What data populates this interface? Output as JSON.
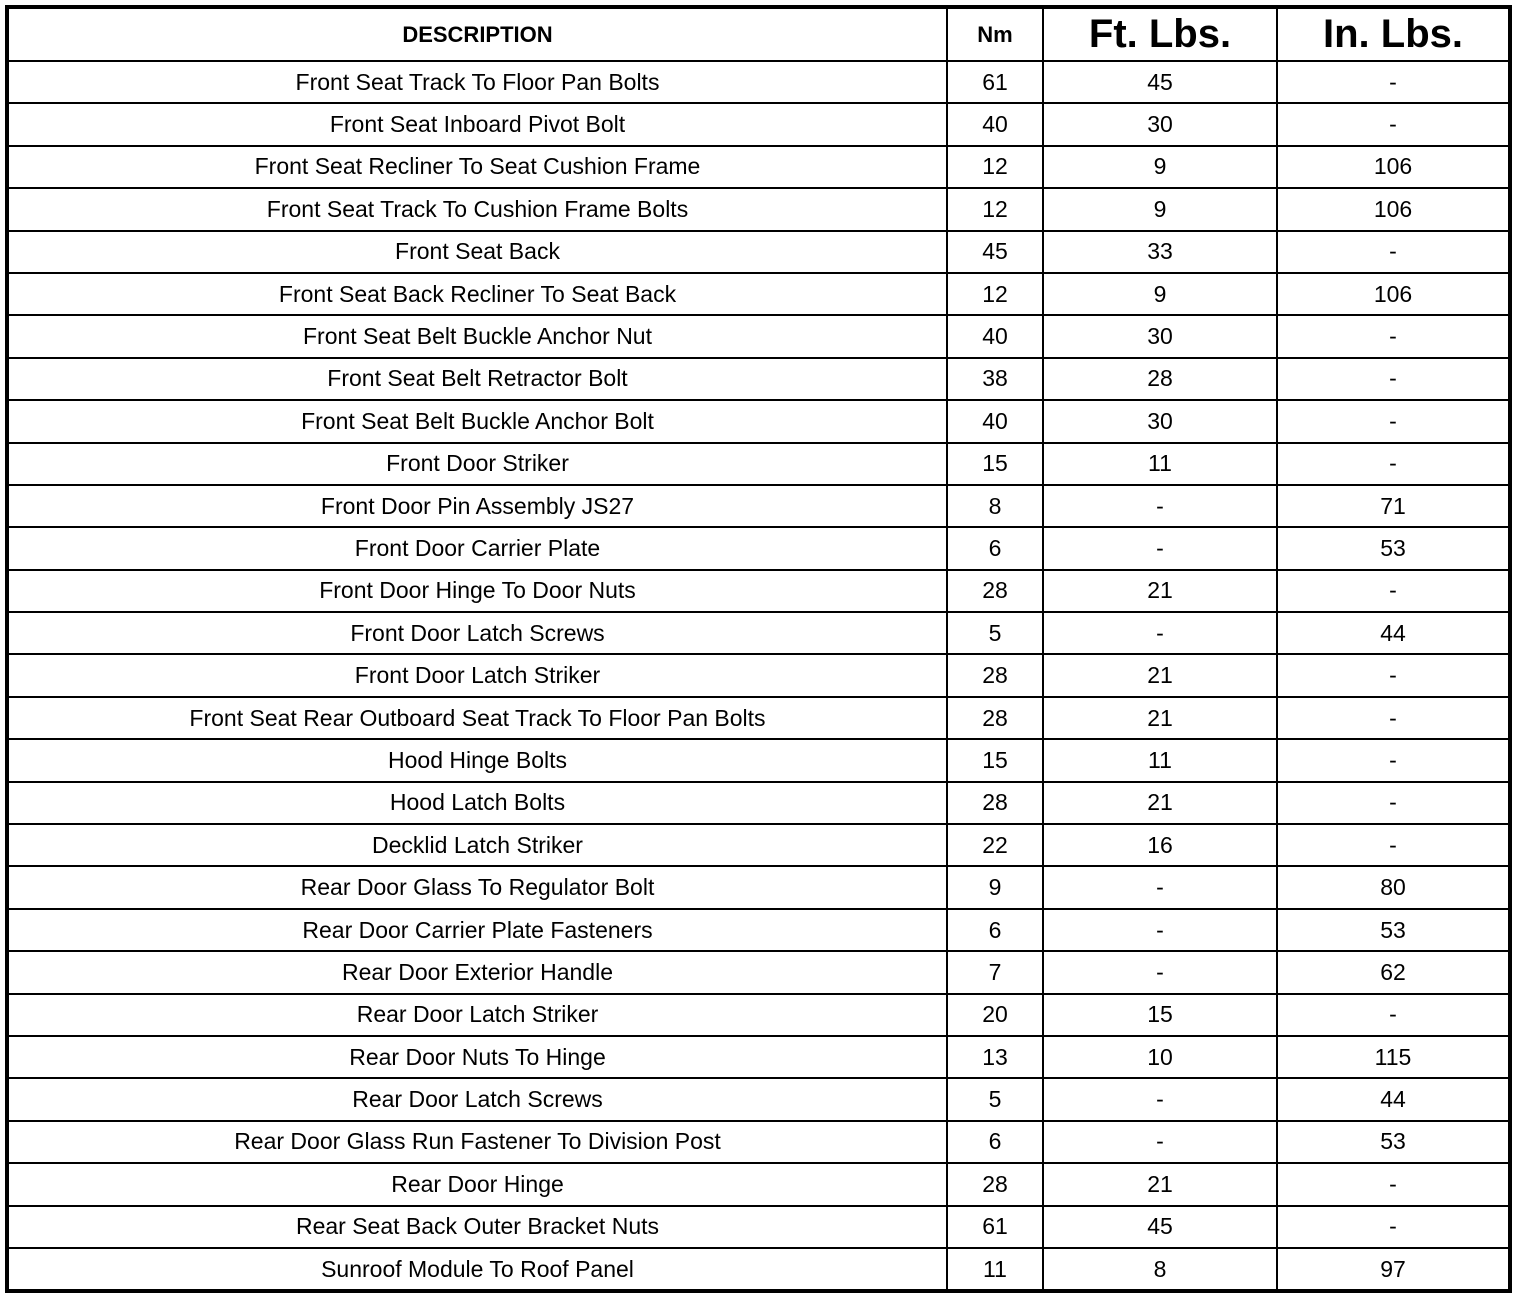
{
  "headers": {
    "description": "DESCRIPTION",
    "nm": "Nm",
    "ft": "Ft. Lbs.",
    "in": "In. Lbs."
  },
  "rows": [
    [
      "Front Seat Track To Floor Pan Bolts",
      "61",
      "45",
      "-"
    ],
    [
      "Front Seat Inboard Pivot Bolt",
      "40",
      "30",
      "-"
    ],
    [
      "Front Seat Recliner To Seat Cushion Frame",
      "12",
      "9",
      "106"
    ],
    [
      "Front Seat Track To Cushion Frame Bolts",
      "12",
      "9",
      "106"
    ],
    [
      "Front Seat Back",
      "45",
      "33",
      "-"
    ],
    [
      "Front Seat Back Recliner To Seat Back",
      "12",
      "9",
      "106"
    ],
    [
      "Front Seat Belt Buckle Anchor Nut",
      "40",
      "30",
      "-"
    ],
    [
      "Front Seat Belt Retractor Bolt",
      "38",
      "28",
      "-"
    ],
    [
      "Front Seat Belt Buckle Anchor Bolt",
      "40",
      "30",
      "-"
    ],
    [
      "Front Door Striker",
      "15",
      "11",
      "-"
    ],
    [
      "Front Door Pin Assembly JS27",
      "8",
      "-",
      "71"
    ],
    [
      "Front Door Carrier Plate",
      "6",
      "-",
      "53"
    ],
    [
      "Front Door Hinge To Door Nuts",
      "28",
      "21",
      "-"
    ],
    [
      "Front Door Latch Screws",
      "5",
      "-",
      "44"
    ],
    [
      "Front Door Latch Striker",
      "28",
      "21",
      "-"
    ],
    [
      "Front Seat Rear Outboard Seat Track To Floor Pan Bolts",
      "28",
      "21",
      "-"
    ],
    [
      "Hood Hinge Bolts",
      "15",
      "11",
      "-"
    ],
    [
      "Hood Latch Bolts",
      "28",
      "21",
      "-"
    ],
    [
      "Decklid Latch Striker",
      "22",
      "16",
      "-"
    ],
    [
      "Rear Door Glass To Regulator Bolt",
      "9",
      "-",
      "80"
    ],
    [
      "Rear Door Carrier Plate Fasteners",
      "6",
      "-",
      "53"
    ],
    [
      "Rear Door Exterior Handle",
      "7",
      "-",
      "62"
    ],
    [
      "Rear Door Latch Striker",
      "20",
      "15",
      "-"
    ],
    [
      "Rear Door Nuts To Hinge",
      "13",
      "10",
      "115"
    ],
    [
      "Rear Door Latch Screws",
      "5",
      "-",
      "44"
    ],
    [
      "Rear Door Glass Run Fastener To Division Post",
      "6",
      "-",
      "53"
    ],
    [
      "Rear Door Hinge",
      "28",
      "21",
      "-"
    ],
    [
      "Rear Seat Back Outer Bracket Nuts",
      "61",
      "45",
      "-"
    ],
    [
      "Sunroof Module To Roof Panel",
      "11",
      "8",
      "97"
    ]
  ]
}
